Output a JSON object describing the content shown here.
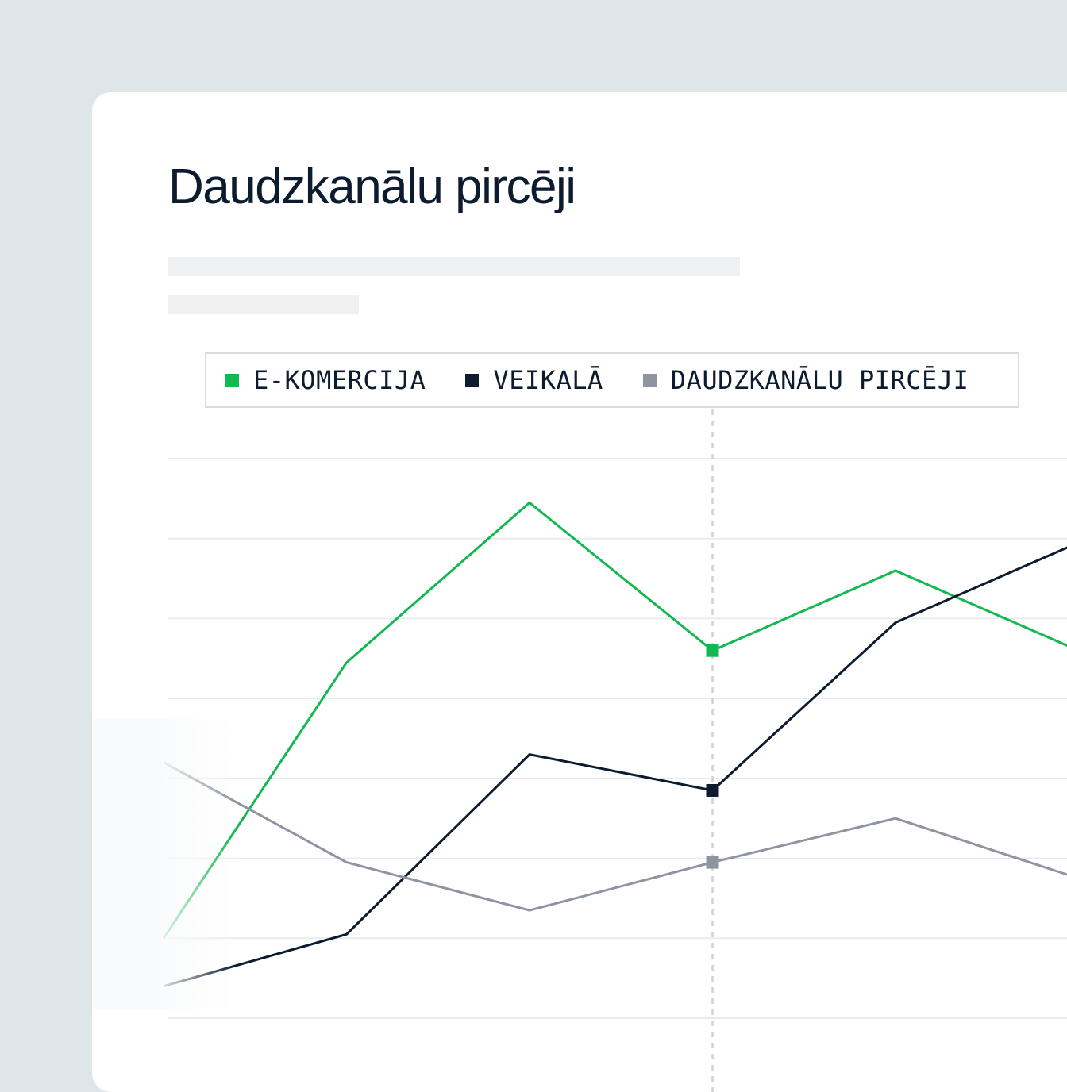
{
  "title": "Daudzkanālu pircēji",
  "colors": {
    "background": "#dfe6e9",
    "card": "#ffffff",
    "ecommerce": "#12b950",
    "instore": "#0d1b2e",
    "omnichannel": "#8e95a1"
  },
  "chart_data": {
    "type": "line",
    "title": "Daudzkanālu pircēji",
    "legend_position": "top",
    "grid": true,
    "categories": [
      "",
      "",
      "",
      "",
      "",
      ""
    ],
    "highlight_index": 3,
    "ylim": [
      0,
      7
    ],
    "series": [
      {
        "name": "E-KOMERCIJA",
        "color": "#12b950",
        "values": [
          1.0,
          4.45,
          6.45,
          4.6,
          5.6,
          4.6
        ]
      },
      {
        "name": "VEIKALĀ",
        "color": "#0d1b2e",
        "values": [
          0.4,
          1.05,
          3.3,
          2.85,
          4.95,
          5.95
        ]
      },
      {
        "name": "DAUDZKANĀLU PIRCĒJI",
        "color": "#8e95a1",
        "values": [
          3.2,
          1.95,
          1.35,
          1.95,
          2.5,
          1.75
        ]
      }
    ]
  }
}
